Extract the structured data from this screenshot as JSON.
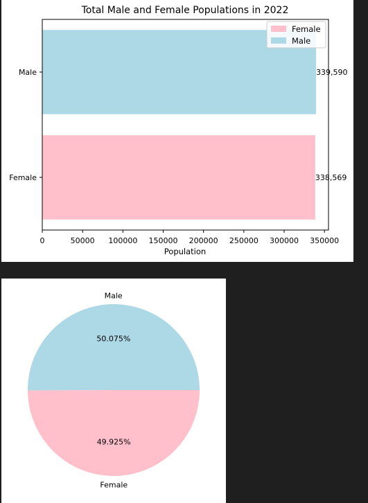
{
  "chart_data": [
    {
      "type": "bar",
      "orientation": "horizontal",
      "title": "Total Male and Female Populations in 2022",
      "xlabel": "Population",
      "ylabel": "",
      "categories": [
        "Male",
        "Female"
      ],
      "values": [
        339590,
        338569
      ],
      "value_labels": [
        "339,590",
        "338,569"
      ],
      "colors": [
        "#add8e6",
        "#ffc0cb"
      ],
      "xlim": [
        0,
        355000
      ],
      "xticks": [
        0,
        50000,
        100000,
        150000,
        200000,
        250000,
        300000,
        350000
      ],
      "xtick_labels": [
        "0",
        "50000",
        "100000",
        "150000",
        "200000",
        "250000",
        "300000",
        "350000"
      ],
      "legend": {
        "placement": "top-right",
        "entries": [
          {
            "label": "Female",
            "color": "#ffc0cb"
          },
          {
            "label": "Male",
            "color": "#add8e6"
          }
        ]
      }
    },
    {
      "type": "pie",
      "labels": [
        "Male",
        "Female"
      ],
      "values": [
        50.075,
        49.925
      ],
      "value_labels": [
        "50.075%",
        "49.925%"
      ],
      "colors": [
        "#add8e6",
        "#ffc0cb"
      ]
    }
  ]
}
